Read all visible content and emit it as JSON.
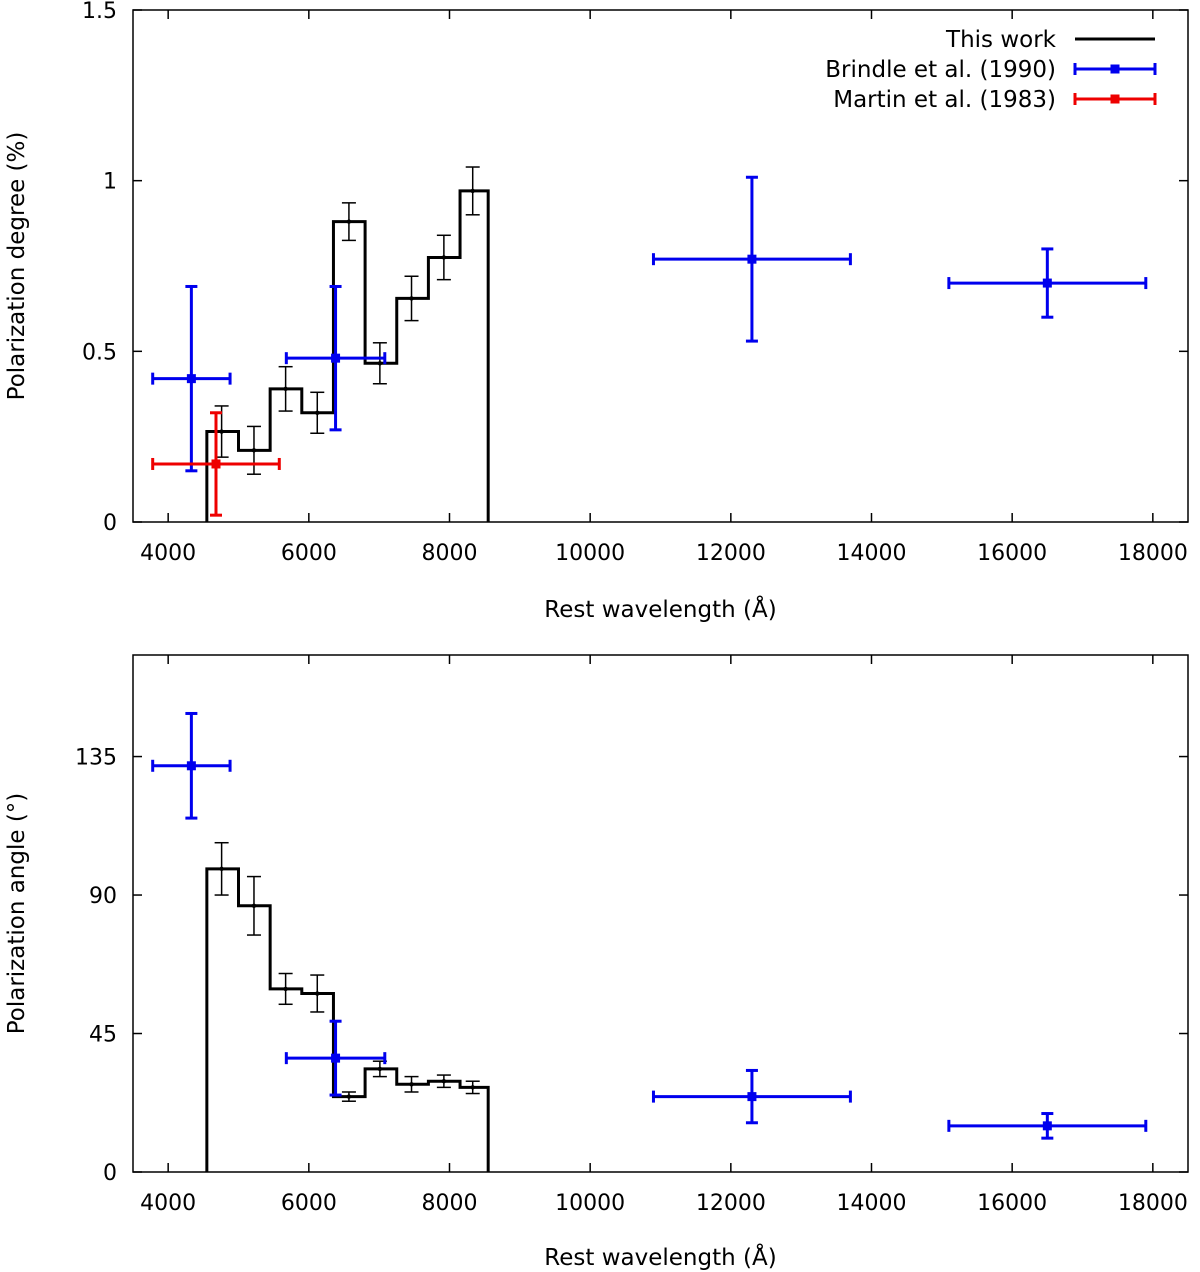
{
  "chart_data": [
    {
      "type": "step-with-errorbars",
      "ylabel": "Polarization degree (%)",
      "xlabel": "Rest wavelength (Å)",
      "xlim": [
        3500,
        18500
      ],
      "ylim": [
        0,
        1.5
      ],
      "xticks": [
        4000,
        6000,
        8000,
        10000,
        12000,
        14000,
        16000,
        18000
      ],
      "yticks": [
        0,
        0.5,
        1,
        1.5
      ],
      "ytick_labels": [
        "0",
        "0.5",
        "1",
        "1.5"
      ],
      "legend": {
        "position": "top-right",
        "entries": [
          {
            "label": "This work",
            "color": "#000000",
            "style": "line"
          },
          {
            "label": "Brindle et al. (1990)",
            "color": "#0000ee",
            "style": "errorbar"
          },
          {
            "label": "Martin et al. (1983)",
            "color": "#ee0000",
            "style": "errorbar"
          }
        ]
      },
      "series": [
        {
          "name": "This work",
          "color": "#000000",
          "bin_edges": [
            4550,
            5000,
            5450,
            5900,
            6350,
            6800,
            7250,
            7700,
            8150,
            8550
          ],
          "values": [
            0.265,
            0.21,
            0.39,
            0.32,
            0.88,
            0.465,
            0.655,
            0.775,
            0.97
          ],
          "centers": [
            4760,
            5220,
            5670,
            6120,
            6570,
            7010,
            7460,
            7920,
            8330
          ],
          "err": [
            0.075,
            0.07,
            0.065,
            0.06,
            0.055,
            0.06,
            0.065,
            0.065,
            0.07
          ]
        },
        {
          "name": "Brindle et al. (1990)",
          "color": "#0000ee",
          "points": [
            {
              "x": 4330,
              "xlo": 3780,
              "xhi": 4880,
              "y": 0.42,
              "ylo": 0.15,
              "yhi": 0.69
            },
            {
              "x": 6380,
              "xlo": 5680,
              "xhi": 7080,
              "y": 0.48,
              "ylo": 0.27,
              "yhi": 0.69
            },
            {
              "x": 12300,
              "xlo": 10900,
              "xhi": 13700,
              "y": 0.77,
              "ylo": 0.53,
              "yhi": 1.01
            },
            {
              "x": 16500,
              "xlo": 15100,
              "xhi": 17900,
              "y": 0.7,
              "ylo": 0.6,
              "yhi": 0.8
            }
          ]
        },
        {
          "name": "Martin et al. (1983)",
          "color": "#ee0000",
          "points": [
            {
              "x": 4680,
              "xlo": 3780,
              "xhi": 5580,
              "y": 0.17,
              "ylo": 0.02,
              "yhi": 0.32
            }
          ]
        }
      ]
    },
    {
      "type": "step-with-errorbars",
      "ylabel": "Polarization angle (°)",
      "xlabel": "Rest wavelength (Å)",
      "xlim": [
        3500,
        18500
      ],
      "ylim": [
        0,
        168
      ],
      "xticks": [
        4000,
        6000,
        8000,
        10000,
        12000,
        14000,
        16000,
        18000
      ],
      "yticks": [
        0,
        45,
        90,
        135
      ],
      "ytick_labels": [
        "0",
        "45",
        "90",
        "135"
      ],
      "series": [
        {
          "name": "This work",
          "color": "#000000",
          "bin_edges": [
            4550,
            5000,
            5450,
            5900,
            6350,
            6800,
            7250,
            7700,
            8150,
            8550
          ],
          "values": [
            98.5,
            86.5,
            59.5,
            58.0,
            24.5,
            33.5,
            28.5,
            29.5,
            27.5
          ],
          "centers": [
            4760,
            5220,
            5670,
            6120,
            6570,
            7010,
            7460,
            7920,
            8330
          ],
          "err": [
            8.5,
            9.5,
            5.0,
            6.0,
            1.5,
            2.5,
            2.5,
            2.0,
            2.0
          ]
        },
        {
          "name": "Brindle et al. (1990)",
          "color": "#0000ee",
          "points": [
            {
              "x": 4330,
              "xlo": 3780,
              "xhi": 4880,
              "y": 132,
              "ylo": 115,
              "yhi": 149
            },
            {
              "x": 6380,
              "xlo": 5680,
              "xhi": 7080,
              "y": 37,
              "ylo": 25,
              "yhi": 49
            },
            {
              "x": 12300,
              "xlo": 10900,
              "xhi": 13700,
              "y": 24.5,
              "ylo": 16,
              "yhi": 33
            },
            {
              "x": 16500,
              "xlo": 15100,
              "xhi": 17900,
              "y": 15,
              "ylo": 11,
              "yhi": 19
            }
          ]
        }
      ]
    }
  ]
}
